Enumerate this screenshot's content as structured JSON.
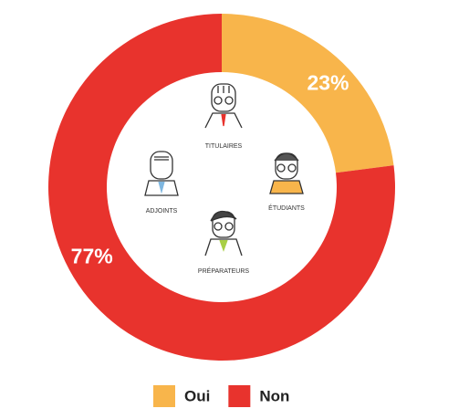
{
  "chart_data": {
    "type": "pie",
    "donut": true,
    "categories": [
      "Oui",
      "Non"
    ],
    "values": [
      23,
      77
    ],
    "value_labels": [
      "23%",
      "77%"
    ],
    "colors": [
      "#f8b54b",
      "#e8332d"
    ],
    "annotations": [
      "TITULAIRES",
      "ÉTUDIANTS",
      "ADJOINTS",
      "PRÉPARATEURS"
    ],
    "legend": "bottom"
  }
}
